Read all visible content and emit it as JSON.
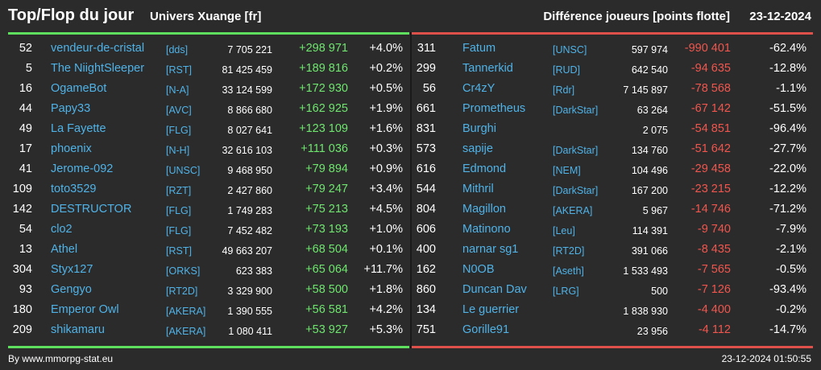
{
  "header": {
    "title": "Top/Flop du jour",
    "universe": "Univers Xuange [fr]",
    "metric": "Différence joueurs [points flotte]",
    "date": "23-12-2024"
  },
  "top": [
    {
      "rank": "52",
      "name": "vendeur-de-cristal",
      "alliance": "[dds]",
      "points": "7 705 221",
      "diff": "+298 971",
      "pct": "+4.0%"
    },
    {
      "rank": "5",
      "name": "The NiightSleeper",
      "alliance": "[RST]",
      "points": "81 425 459",
      "diff": "+189 816",
      "pct": "+0.2%"
    },
    {
      "rank": "16",
      "name": "OgameBot",
      "alliance": "[N-A]",
      "points": "33 124 599",
      "diff": "+172 930",
      "pct": "+0.5%"
    },
    {
      "rank": "44",
      "name": "Papy33",
      "alliance": "[AVC]",
      "points": "8 866 680",
      "diff": "+162 925",
      "pct": "+1.9%"
    },
    {
      "rank": "49",
      "name": "La Fayette",
      "alliance": "[FLG]",
      "points": "8 027 641",
      "diff": "+123 109",
      "pct": "+1.6%"
    },
    {
      "rank": "17",
      "name": "phoenix",
      "alliance": "[N-H]",
      "points": "32 616 103",
      "diff": "+111 036",
      "pct": "+0.3%"
    },
    {
      "rank": "41",
      "name": "Jerome-092",
      "alliance": "[UNSC]",
      "points": "9 468 950",
      "diff": "+79 894",
      "pct": "+0.9%"
    },
    {
      "rank": "109",
      "name": "toto3529",
      "alliance": "[RZT]",
      "points": "2 427 860",
      "diff": "+79 247",
      "pct": "+3.4%"
    },
    {
      "rank": "142",
      "name": "DESTRUCTOR",
      "alliance": "[FLG]",
      "points": "1 749 283",
      "diff": "+75 213",
      "pct": "+4.5%"
    },
    {
      "rank": "54",
      "name": "clo2",
      "alliance": "[FLG]",
      "points": "7 452 482",
      "diff": "+73 193",
      "pct": "+1.0%"
    },
    {
      "rank": "13",
      "name": "Athel",
      "alliance": "[RST]",
      "points": "49 663 207",
      "diff": "+68 504",
      "pct": "+0.1%"
    },
    {
      "rank": "304",
      "name": "Styx127",
      "alliance": "[ORKS]",
      "points": "623 383",
      "diff": "+65 064",
      "pct": "+11.7%"
    },
    {
      "rank": "93",
      "name": "Gengyo",
      "alliance": "[RT2D]",
      "points": "3 329 900",
      "diff": "+58 500",
      "pct": "+1.8%"
    },
    {
      "rank": "180",
      "name": "Emperor Owl",
      "alliance": "[AKERA]",
      "points": "1 390 555",
      "diff": "+56 581",
      "pct": "+4.2%"
    },
    {
      "rank": "209",
      "name": "shikamaru",
      "alliance": "[AKERA]",
      "points": "1 080 411",
      "diff": "+53 927",
      "pct": "+5.3%"
    }
  ],
  "flop": [
    {
      "rank": "311",
      "name": "Fatum",
      "alliance": "[UNSC]",
      "points": "597 974",
      "diff": "-990 401",
      "pct": "-62.4%"
    },
    {
      "rank": "299",
      "name": "Tannerkid",
      "alliance": "[RUD]",
      "points": "642 540",
      "diff": "-94 635",
      "pct": "-12.8%"
    },
    {
      "rank": "56",
      "name": "Cr4zY",
      "alliance": "[Rdr]",
      "points": "7 145 897",
      "diff": "-78 568",
      "pct": "-1.1%"
    },
    {
      "rank": "661",
      "name": "Prometheus",
      "alliance": "[DarkStar]",
      "points": "63 264",
      "diff": "-67 142",
      "pct": "-51.5%"
    },
    {
      "rank": "831",
      "name": "Burghi",
      "alliance": "",
      "points": "2 075",
      "diff": "-54 851",
      "pct": "-96.4%"
    },
    {
      "rank": "573",
      "name": "sapije",
      "alliance": "[DarkStar]",
      "points": "134 760",
      "diff": "-51 642",
      "pct": "-27.7%"
    },
    {
      "rank": "616",
      "name": "Edmond",
      "alliance": "[NEM]",
      "points": "104 496",
      "diff": "-29 458",
      "pct": "-22.0%"
    },
    {
      "rank": "544",
      "name": "Mithril",
      "alliance": "[DarkStar]",
      "points": "167 200",
      "diff": "-23 215",
      "pct": "-12.2%"
    },
    {
      "rank": "804",
      "name": "Magillon",
      "alliance": "[AKERA]",
      "points": "5 967",
      "diff": "-14 746",
      "pct": "-71.2%"
    },
    {
      "rank": "606",
      "name": "Matinono",
      "alliance": "[Leu]",
      "points": "114 391",
      "diff": "-9 740",
      "pct": "-7.9%"
    },
    {
      "rank": "400",
      "name": "narnar sg1",
      "alliance": "[RT2D]",
      "points": "391 066",
      "diff": "-8 435",
      "pct": "-2.1%"
    },
    {
      "rank": "162",
      "name": "N0OB",
      "alliance": "[Aseth]",
      "points": "1 533 493",
      "diff": "-7 565",
      "pct": "-0.5%"
    },
    {
      "rank": "860",
      "name": "Duncan Dav",
      "alliance": "[LRG]",
      "points": "500",
      "diff": "-7 126",
      "pct": "-93.4%"
    },
    {
      "rank": "134",
      "name": "Le guerrier",
      "alliance": "",
      "points": "1 838 930",
      "diff": "-4 400",
      "pct": "-0.2%"
    },
    {
      "rank": "751",
      "name": "Gorille91",
      "alliance": "",
      "points": "23 956",
      "diff": "-4 112",
      "pct": "-14.7%"
    }
  ],
  "footer": {
    "credit": "By www.mmorpg-stat.eu",
    "timestamp": "23-12-2024 01:50:55"
  },
  "colors": {
    "background": "#2b2b2b",
    "link": "#4fb3e8",
    "gain": "#6ee66e",
    "loss": "#f0564e",
    "top_rule": "#5ee05e",
    "flop_rule": "#e0504a"
  }
}
